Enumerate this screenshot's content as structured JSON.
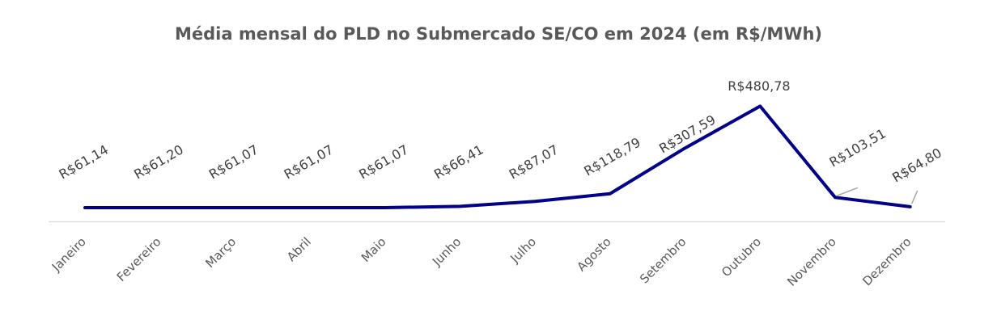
{
  "chart_data": {
    "type": "line",
    "title": "Média mensal do PLD no Submercado SE/CO em 2024 (em R$/MWh)",
    "categories": [
      "Janeiro",
      "Fevereiro",
      "Março",
      "Abril",
      "Maio",
      "Junho",
      "Julho",
      "Agosto",
      "Setembro",
      "Outubro",
      "Novembro",
      "Dezembro"
    ],
    "series": [
      {
        "values": [
          61.14,
          61.2,
          61.07,
          61.07,
          61.07,
          66.41,
          87.07,
          118.79,
          307.59,
          480.78,
          103.51,
          64.8
        ],
        "labels": [
          "R$61,14",
          "R$61,20",
          "R$61,07",
          "R$61,07",
          "R$61,07",
          "R$66,41",
          "R$87,07",
          "R$118,79",
          "R$307,59",
          "R$480,78",
          "R$103,51",
          "R$64,80"
        ],
        "color": "#00008B"
      }
    ],
    "xlabel": "",
    "ylabel": "",
    "ylim": [
      0,
      500
    ],
    "grid": false,
    "legend": "none"
  }
}
